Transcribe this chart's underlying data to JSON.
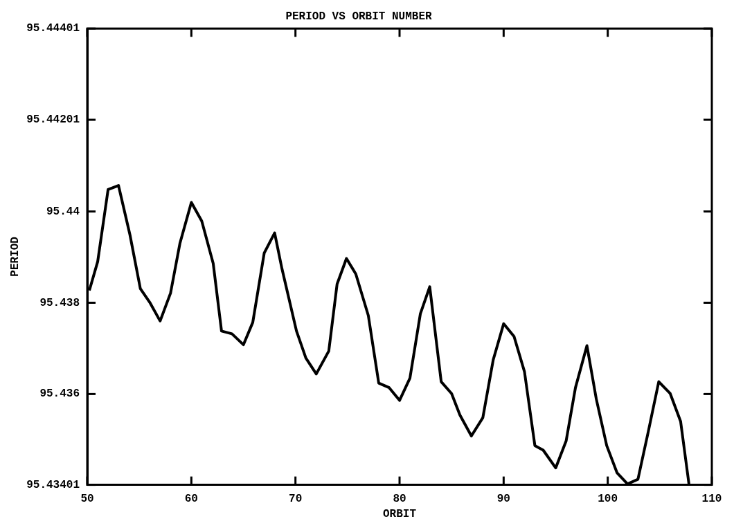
{
  "chart_data": {
    "type": "line",
    "title": "PERIOD VS ORBIT NUMBER",
    "xlabel": "ORBIT",
    "ylabel": "PERIOD",
    "xlim": [
      50,
      110
    ],
    "xticks": [
      50,
      60,
      70,
      80,
      90,
      100,
      110
    ],
    "ylim": [
      95.43401,
      95.44401
    ],
    "yticks": [
      95.43401,
      95.436,
      95.438,
      95.44,
      95.44201,
      95.44401
    ],
    "series": [
      {
        "color": "#000000",
        "x": [
          50.2,
          51.0,
          52.0,
          53.0,
          54.1,
          55.1,
          56.0,
          57.0,
          58.0,
          58.9,
          60.0,
          61.0,
          62.1,
          62.9,
          63.9,
          65.0,
          65.9,
          67.0,
          68.0,
          68.7,
          70.1,
          71.0,
          72.0,
          73.2,
          74.0,
          74.9,
          75.8,
          77.0,
          78.0,
          79.0,
          80.0,
          81.0,
          82.0,
          82.9,
          84.0,
          85.0,
          85.8,
          86.9,
          88.0,
          89.0,
          90.0,
          91.0,
          92.0,
          93.0,
          93.8,
          95.0,
          96.0,
          96.9,
          98.0,
          98.9,
          99.9,
          100.9,
          101.9,
          102.9,
          103.9,
          104.9,
          106.0,
          107.0,
          107.8
        ],
        "values": [
          95.43827,
          95.4389,
          95.44048,
          95.44057,
          95.43949,
          95.43831,
          95.43801,
          95.4376,
          95.43821,
          95.4393,
          95.4402,
          95.43979,
          95.43886,
          95.43738,
          95.43732,
          95.43708,
          95.43757,
          95.43909,
          95.43953,
          95.43875,
          95.43738,
          95.43679,
          95.43644,
          95.43694,
          95.43841,
          95.43897,
          95.43863,
          95.43772,
          95.43624,
          95.43614,
          95.43586,
          95.43635,
          95.43776,
          95.43835,
          95.43627,
          95.43601,
          95.43554,
          95.43508,
          95.43548,
          95.43675,
          95.43754,
          95.43726,
          95.43649,
          95.43487,
          95.43477,
          95.43438,
          95.43497,
          95.43614,
          95.43706,
          95.43589,
          95.43487,
          95.43427,
          95.43403,
          95.43413,
          95.43518,
          95.43627,
          95.43601,
          95.4354,
          95.43403
        ]
      }
    ]
  }
}
